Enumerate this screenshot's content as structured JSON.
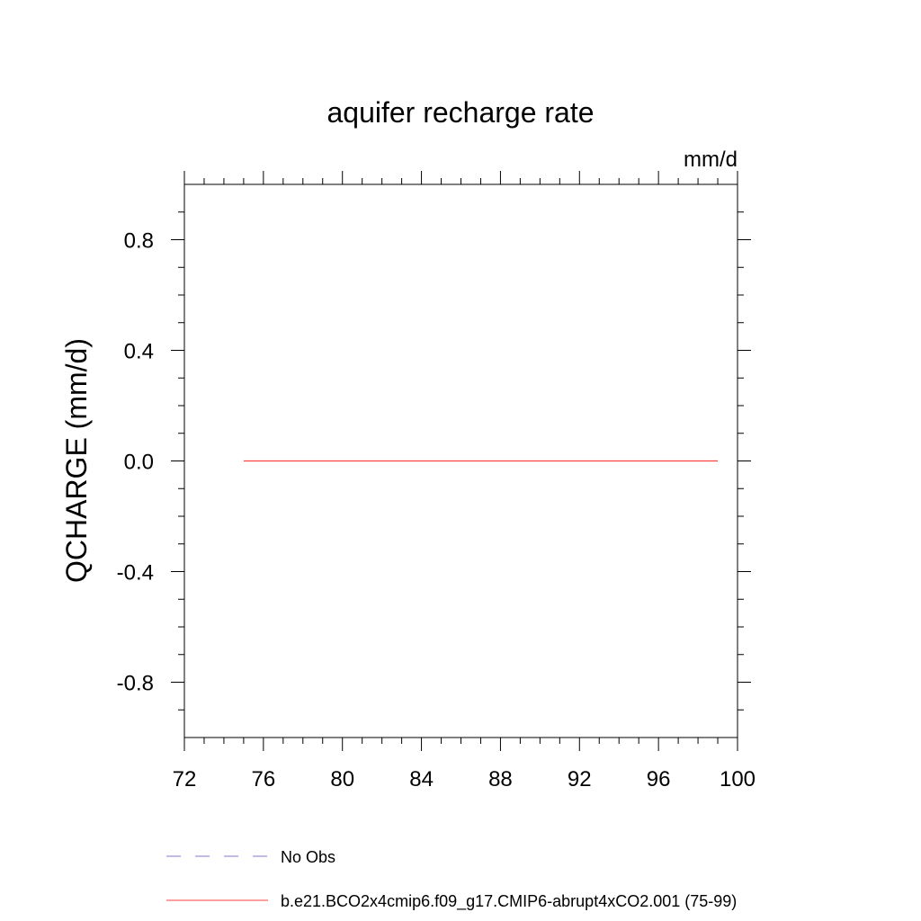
{
  "chart_data": {
    "type": "line",
    "title": "aquifer recharge rate",
    "units": "mm/d",
    "ylabel": "QCHARGE  (mm/d)",
    "xlabel": "",
    "xlim": [
      72,
      100
    ],
    "ylim": [
      -1.0,
      1.0
    ],
    "x_ticks": [
      72,
      76,
      80,
      84,
      88,
      92,
      96,
      100
    ],
    "x_tick_labels": [
      "72",
      "76",
      "80",
      "84",
      "88",
      "92",
      "96",
      "100"
    ],
    "y_ticks": [
      0.8,
      0.4,
      0.0,
      -0.4,
      -0.8
    ],
    "y_tick_labels": [
      "0.8",
      "0.4",
      "0.0",
      "-0.4",
      "-0.8"
    ],
    "grid": false,
    "legend_position": "bottom",
    "series": [
      {
        "name": "No Obs",
        "color": "#7b7bd6",
        "dash": true,
        "x": [],
        "y": []
      },
      {
        "name": "b.e21.BCO2x4cmip6.f09_g17.CMIP6-abrupt4xCO2.001 (75-99)",
        "color": "#ff4040",
        "dash": false,
        "x": [
          75,
          99
        ],
        "y": [
          0.0,
          0.0
        ]
      }
    ]
  }
}
